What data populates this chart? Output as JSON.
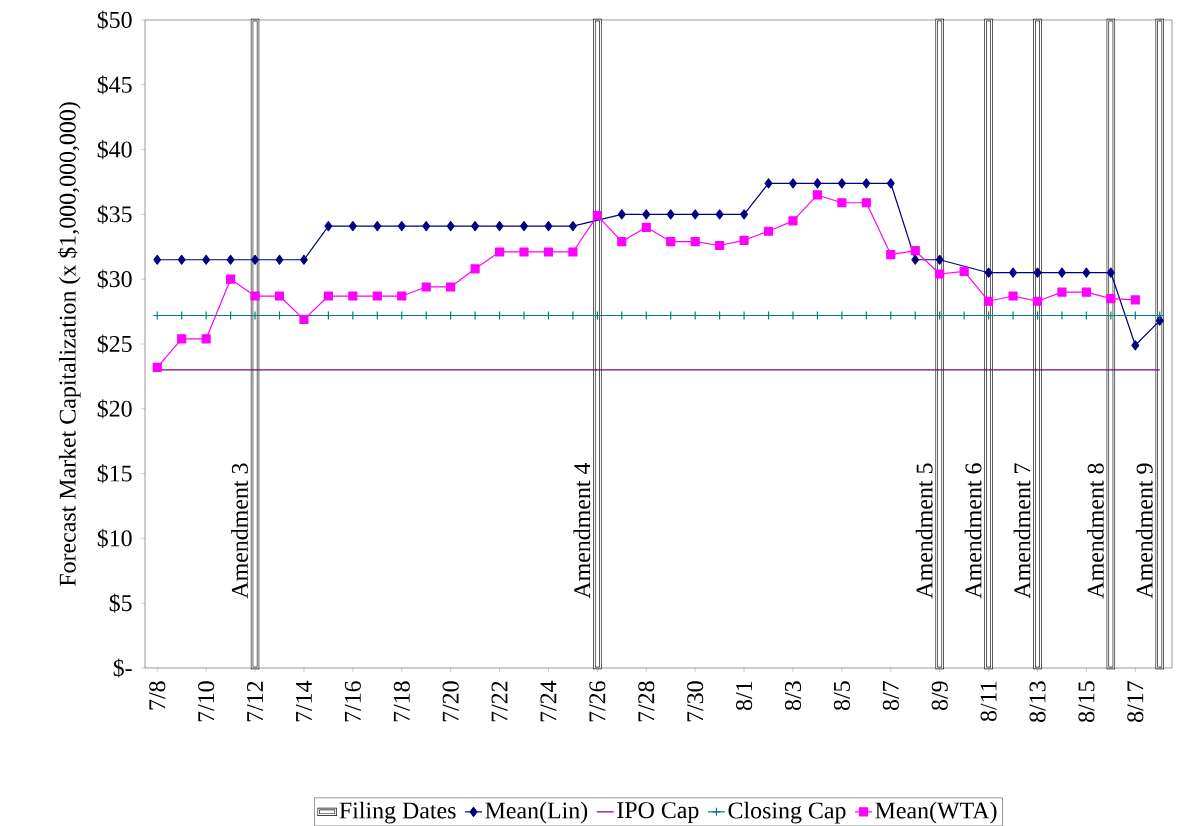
{
  "chart_data": {
    "type": "line",
    "ylabel": "Forecast Market Capitalization (x $1,000,000,000)",
    "categories": [
      "7/8",
      null,
      "7/10",
      null,
      "7/12",
      null,
      "7/14",
      null,
      "7/16",
      null,
      "7/18",
      null,
      "7/20",
      null,
      "7/22",
      null,
      "7/24",
      null,
      "7/26",
      null,
      "7/28",
      null,
      "7/30",
      null,
      "8/1",
      null,
      "8/3",
      null,
      "8/5",
      null,
      "8/7",
      null,
      "8/9",
      null,
      "8/11",
      null,
      "8/13",
      null,
      "8/15",
      null,
      "8/17",
      null
    ],
    "ylim": [
      0,
      50
    ],
    "yticks": [
      {
        "value": 0,
        "label": "$-"
      },
      {
        "value": 5,
        "label": "$5"
      },
      {
        "value": 10,
        "label": "$10"
      },
      {
        "value": 15,
        "label": "$15"
      },
      {
        "value": 20,
        "label": "$20"
      },
      {
        "value": 25,
        "label": "$25"
      },
      {
        "value": 30,
        "label": "$30"
      },
      {
        "value": 35,
        "label": "$35"
      },
      {
        "value": 40,
        "label": "$40"
      },
      {
        "value": 45,
        "label": "$45"
      },
      {
        "value": 50,
        "label": "$50"
      }
    ],
    "grid": false,
    "legend": "bottom",
    "series": [
      {
        "name": "Filing Dates",
        "type": "bar",
        "color": "#ffffff",
        "values": [
          null,
          null,
          null,
          null,
          50,
          null,
          null,
          null,
          null,
          null,
          null,
          null,
          null,
          null,
          null,
          null,
          null,
          null,
          50,
          null,
          null,
          null,
          null,
          null,
          null,
          null,
          null,
          null,
          null,
          null,
          null,
          null,
          50,
          null,
          50,
          null,
          50,
          null,
          null,
          50,
          null,
          50
        ]
      },
      {
        "name": "Mean(Lin)",
        "color": "#000080",
        "marker": "diamond",
        "values": [
          31.5,
          31.5,
          31.5,
          31.5,
          31.5,
          31.5,
          31.5,
          34.1,
          34.1,
          34.1,
          34.1,
          34.1,
          34.1,
          34.1,
          34.1,
          34.1,
          34.1,
          34.1,
          null,
          35.0,
          35.0,
          35.0,
          35.0,
          35.0,
          35.0,
          37.4,
          37.4,
          37.4,
          37.4,
          37.4,
          37.4,
          31.5,
          31.5,
          null,
          30.5,
          30.5,
          30.5,
          30.5,
          30.5,
          30.5,
          24.9,
          26.8
        ]
      },
      {
        "name": "IPO Cap",
        "color": "#800080",
        "marker": "none",
        "values": [
          23.0,
          23.0,
          23.0,
          23.0,
          23.0,
          23.0,
          23.0,
          23.0,
          23.0,
          23.0,
          23.0,
          23.0,
          23.0,
          23.0,
          23.0,
          23.0,
          23.0,
          23.0,
          23.0,
          23.0,
          23.0,
          23.0,
          23.0,
          23.0,
          23.0,
          23.0,
          23.0,
          23.0,
          23.0,
          23.0,
          23.0,
          23.0,
          23.0,
          23.0,
          23.0,
          23.0,
          23.0,
          23.0,
          23.0,
          23.0,
          23.0,
          23.0
        ]
      },
      {
        "name": "Closing Cap",
        "color": "#008080",
        "marker": "cross",
        "values": [
          27.2,
          27.2,
          27.2,
          27.2,
          27.2,
          27.2,
          null,
          27.2,
          27.2,
          27.2,
          27.2,
          27.2,
          27.2,
          27.2,
          27.2,
          27.2,
          27.2,
          27.2,
          27.2,
          27.2,
          27.2,
          27.2,
          27.2,
          27.2,
          27.2,
          27.2,
          27.2,
          27.2,
          27.2,
          27.2,
          27.2,
          27.2,
          27.2,
          27.2,
          27.2,
          27.2,
          27.2,
          27.2,
          27.2,
          27.2,
          27.2,
          27.2
        ]
      },
      {
        "name": "Mean(WTA)",
        "color": "#ff00ff",
        "marker": "square",
        "values": [
          23.2,
          25.4,
          25.4,
          30.0,
          28.7,
          28.7,
          26.9,
          28.7,
          28.7,
          28.7,
          28.7,
          29.4,
          29.4,
          30.8,
          32.1,
          32.1,
          32.1,
          32.1,
          34.9,
          32.9,
          34.0,
          32.9,
          32.9,
          32.6,
          33.0,
          33.7,
          34.5,
          36.5,
          35.9,
          35.9,
          31.9,
          32.2,
          30.4,
          30.6,
          28.3,
          28.7,
          28.3,
          29.0,
          29.0,
          28.5,
          28.4,
          null
        ]
      }
    ],
    "annotations": [
      "Amendment 3",
      "Amendment 4",
      "Amendment 5",
      "Amendment 6",
      "Amendment 7",
      "Amendment 8",
      "Amendment 9"
    ]
  }
}
